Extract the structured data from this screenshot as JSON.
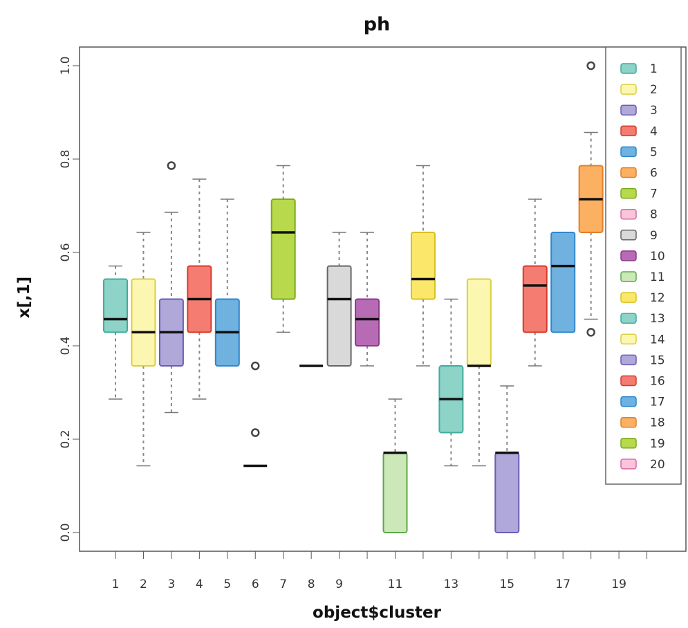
{
  "chart_data": {
    "type": "boxplot",
    "title": "ph",
    "xlabel": "object$cluster",
    "ylabel": "x[,1]",
    "ylim": [
      0,
      1.0
    ],
    "yticks": [
      "0.0",
      "0.2",
      "0.4",
      "0.6",
      "0.8",
      "1.0"
    ],
    "xtick_labels": [
      "1",
      "2",
      "3",
      "4",
      "5",
      "6",
      "7",
      "8",
      "9",
      "",
      "11",
      "",
      "13",
      "",
      "15",
      "",
      "17",
      "",
      "19",
      ""
    ],
    "categories": [
      "1",
      "2",
      "3",
      "4",
      "5",
      "6",
      "7",
      "8",
      "9",
      "10",
      "11",
      "12",
      "13",
      "14",
      "15",
      "16",
      "17",
      "18",
      "19",
      "20"
    ],
    "legend_position": "right",
    "legend": [
      "1",
      "2",
      "3",
      "4",
      "5",
      "6",
      "7",
      "8",
      "9",
      "10",
      "11",
      "12",
      "13",
      "14",
      "15",
      "16",
      "17",
      "18",
      "19",
      "20"
    ],
    "colors": [
      "#8dd3c7",
      "#fbf7b0",
      "#b0a8d8",
      "#f47c70",
      "#6fb2e0",
      "#fbb062",
      "#b8d94c",
      "#f9c4dc",
      "#d9d9d9",
      "#b86bb5",
      "#cde8b8",
      "#fbe86a",
      "#8dd3c7",
      "#fbf7b0",
      "#b0a8d8",
      "#f47c70",
      "#6fb2e0",
      "#fbb062",
      "#b8d94c",
      "#f9c4dc"
    ],
    "borders": [
      "#3fae9c",
      "#d8d040",
      "#6a5cb8",
      "#d83a2c",
      "#2f86cc",
      "#e0802a",
      "#7aaa20",
      "#d86aa0",
      "#666666",
      "#8a3a8a",
      "#5aaa4a",
      "#d8c020",
      "#3fae9c",
      "#d8d040",
      "#6a5cb8",
      "#d83a2c",
      "#2f86cc",
      "#e0802a",
      "#7aaa20",
      "#d86aa0"
    ],
    "boxes": [
      {
        "cluster": "1",
        "whisker_low": 0.286,
        "q1": 0.429,
        "median": 0.457,
        "q3": 0.543,
        "whisker_high": 0.571,
        "outliers": []
      },
      {
        "cluster": "2",
        "whisker_low": 0.143,
        "q1": 0.357,
        "median": 0.429,
        "q3": 0.543,
        "whisker_high": 0.643,
        "outliers": []
      },
      {
        "cluster": "3",
        "whisker_low": 0.257,
        "q1": 0.357,
        "median": 0.429,
        "q3": 0.5,
        "whisker_high": 0.686,
        "outliers": [
          0.786
        ]
      },
      {
        "cluster": "4",
        "whisker_low": 0.286,
        "q1": 0.429,
        "median": 0.5,
        "q3": 0.571,
        "whisker_high": 0.757,
        "outliers": []
      },
      {
        "cluster": "5",
        "whisker_low": 0.357,
        "q1": 0.357,
        "median": 0.429,
        "q3": 0.5,
        "whisker_high": 0.714,
        "outliers": []
      },
      {
        "cluster": "6",
        "whisker_low": 0.143,
        "q1": 0.143,
        "median": 0.143,
        "q3": 0.143,
        "whisker_high": 0.143,
        "outliers": [
          0.357,
          0.214
        ]
      },
      {
        "cluster": "7",
        "whisker_low": 0.429,
        "q1": 0.5,
        "median": 0.643,
        "q3": 0.714,
        "whisker_high": 0.786,
        "outliers": []
      },
      {
        "cluster": "8",
        "whisker_low": 0.357,
        "q1": 0.357,
        "median": 0.357,
        "q3": 0.357,
        "whisker_high": 0.357,
        "outliers": []
      },
      {
        "cluster": "9",
        "whisker_low": 0.357,
        "q1": 0.357,
        "median": 0.5,
        "q3": 0.571,
        "whisker_high": 0.643,
        "outliers": []
      },
      {
        "cluster": "10",
        "whisker_low": 0.357,
        "q1": 0.4,
        "median": 0.457,
        "q3": 0.5,
        "whisker_high": 0.643,
        "outliers": []
      },
      {
        "cluster": "11",
        "whisker_low": 0.0,
        "q1": 0.0,
        "median": 0.171,
        "q3": 0.171,
        "whisker_high": 0.286,
        "outliers": []
      },
      {
        "cluster": "12",
        "whisker_low": 0.357,
        "q1": 0.5,
        "median": 0.543,
        "q3": 0.643,
        "whisker_high": 0.786,
        "outliers": []
      },
      {
        "cluster": "13",
        "whisker_low": 0.143,
        "q1": 0.214,
        "median": 0.286,
        "q3": 0.357,
        "whisker_high": 0.5,
        "outliers": []
      },
      {
        "cluster": "14",
        "whisker_low": 0.143,
        "q1": 0.357,
        "median": 0.357,
        "q3": 0.543,
        "whisker_high": 0.543,
        "outliers": []
      },
      {
        "cluster": "15",
        "whisker_low": 0.0,
        "q1": 0.0,
        "median": 0.171,
        "q3": 0.171,
        "whisker_high": 0.314,
        "outliers": []
      },
      {
        "cluster": "16",
        "whisker_low": 0.357,
        "q1": 0.429,
        "median": 0.529,
        "q3": 0.571,
        "whisker_high": 0.714,
        "outliers": []
      },
      {
        "cluster": "17",
        "whisker_low": 0.429,
        "q1": 0.429,
        "median": 0.571,
        "q3": 0.643,
        "whisker_high": 0.643,
        "outliers": []
      },
      {
        "cluster": "18",
        "whisker_low": 0.457,
        "q1": 0.643,
        "median": 0.714,
        "q3": 0.786,
        "whisker_high": 0.857,
        "outliers": [
          1.0,
          0.429
        ]
      },
      {
        "cluster": "19",
        "outliers": []
      },
      {
        "cluster": "20",
        "outliers": []
      }
    ]
  }
}
